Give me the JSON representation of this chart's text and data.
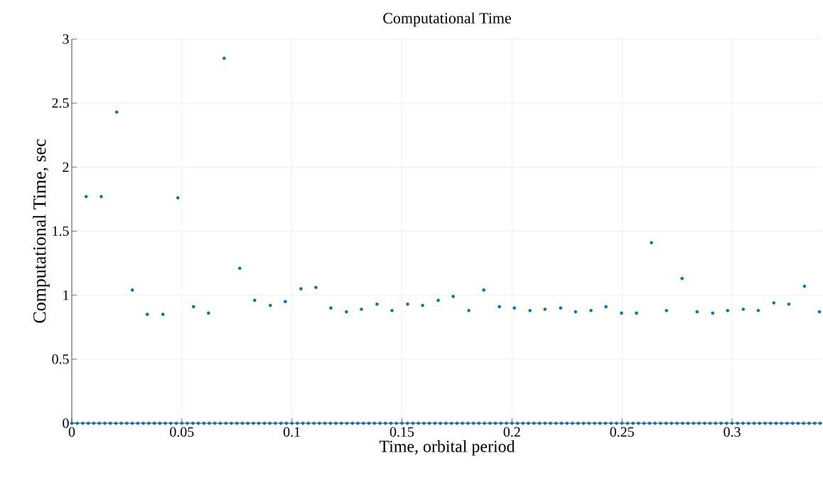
{
  "chart_data": {
    "type": "scatter",
    "title": "Computational Time",
    "xlabel": "Time, orbital period",
    "ylabel": "Computational Time, sec",
    "xlim": [
      0,
      0.341
    ],
    "ylim": [
      0,
      3
    ],
    "xticks": [
      0,
      0.05,
      0.1,
      0.15,
      0.2,
      0.25,
      0.3
    ],
    "yticks": [
      0,
      0.5,
      1,
      1.5,
      2,
      2.5,
      3
    ],
    "grid": true,
    "marker": "circle",
    "series": [
      {
        "color": "#0072bd",
        "x": [
          0.0065,
          0.0134,
          0.0204,
          0.0275,
          0.0343,
          0.0414,
          0.0482,
          0.0553,
          0.0621,
          0.0692,
          0.0763,
          0.0831,
          0.0902,
          0.097,
          0.1041,
          0.1109,
          0.1177,
          0.1248,
          0.1316,
          0.1387,
          0.1455,
          0.1526,
          0.1594,
          0.1665,
          0.1733,
          0.1804,
          0.1872,
          0.1943,
          0.2011,
          0.2082,
          0.215,
          0.2221,
          0.2289,
          0.2359,
          0.2427,
          0.2498,
          0.2566,
          0.2634,
          0.2702,
          0.2773,
          0.2841,
          0.2912,
          0.298,
          0.3051,
          0.3119,
          0.319,
          0.3258,
          0.3329,
          0.3397
        ],
        "values": [
          1.77,
          1.77,
          2.43,
          1.04,
          0.85,
          0.85,
          1.76,
          0.91,
          0.86,
          2.85,
          1.21,
          0.96,
          0.92,
          0.95,
          1.05,
          1.06,
          0.9,
          0.87,
          0.89,
          0.93,
          0.88,
          0.93,
          0.92,
          0.96,
          0.99,
          0.88,
          1.04,
          0.91,
          0.9,
          0.88,
          0.89,
          0.9,
          0.87,
          0.88,
          0.91,
          0.86,
          0.86,
          1.41,
          0.88,
          1.13,
          0.87,
          0.86,
          0.88,
          0.89,
          0.88,
          0.94,
          0.93,
          1.07,
          0.87
        ]
      },
      {
        "color": "#0072bd",
        "x": [
          0,
          0.0025,
          0.005,
          0.0075,
          0.01,
          0.0125,
          0.015,
          0.0175,
          0.02,
          0.0225,
          0.025,
          0.0275,
          0.03,
          0.0325,
          0.035,
          0.0375,
          0.04,
          0.0425,
          0.045,
          0.0475,
          0.05,
          0.0525,
          0.055,
          0.0575,
          0.06,
          0.0625,
          0.065,
          0.0675,
          0.07,
          0.0725,
          0.075,
          0.0775,
          0.08,
          0.0825,
          0.085,
          0.0875,
          0.09,
          0.0925,
          0.095,
          0.0975,
          0.1,
          0.1025,
          0.105,
          0.1075,
          0.11,
          0.1125,
          0.115,
          0.1175,
          0.12,
          0.1225,
          0.125,
          0.1275,
          0.13,
          0.1325,
          0.135,
          0.1375,
          0.14,
          0.1425,
          0.145,
          0.1475,
          0.15,
          0.1525,
          0.155,
          0.1575,
          0.16,
          0.1625,
          0.165,
          0.1675,
          0.17,
          0.1725,
          0.175,
          0.1775,
          0.18,
          0.1825,
          0.185,
          0.1875,
          0.19,
          0.1925,
          0.195,
          0.1975,
          0.2,
          0.2025,
          0.205,
          0.2075,
          0.21,
          0.2125,
          0.215,
          0.2175,
          0.22,
          0.2225,
          0.225,
          0.2275,
          0.23,
          0.2325,
          0.235,
          0.2375,
          0.24,
          0.2425,
          0.245,
          0.2475,
          0.25,
          0.2525,
          0.255,
          0.2575,
          0.26,
          0.2625,
          0.265,
          0.2675,
          0.27,
          0.2725,
          0.275,
          0.2775,
          0.28,
          0.2825,
          0.285,
          0.2875,
          0.29,
          0.2925,
          0.295,
          0.2975,
          0.3,
          0.3025,
          0.305,
          0.3075,
          0.31,
          0.3125,
          0.315,
          0.3175,
          0.32,
          0.3225,
          0.325,
          0.3275,
          0.33,
          0.3325,
          0.335,
          0.3375,
          0.34
        ],
        "values": [
          0,
          0,
          0,
          0,
          0,
          0,
          0,
          0,
          0,
          0,
          0,
          0,
          0,
          0,
          0,
          0,
          0,
          0,
          0,
          0,
          0,
          0,
          0,
          0,
          0,
          0,
          0,
          0,
          0,
          0,
          0,
          0,
          0,
          0,
          0,
          0,
          0,
          0,
          0,
          0,
          0,
          0,
          0,
          0,
          0,
          0,
          0,
          0,
          0,
          0,
          0,
          0,
          0,
          0,
          0,
          0,
          0,
          0,
          0,
          0,
          0,
          0,
          0,
          0,
          0,
          0,
          0,
          0,
          0,
          0,
          0,
          0,
          0,
          0,
          0,
          0,
          0,
          0,
          0,
          0,
          0,
          0,
          0,
          0,
          0,
          0,
          0,
          0,
          0,
          0,
          0,
          0,
          0,
          0,
          0,
          0,
          0,
          0,
          0,
          0,
          0,
          0,
          0,
          0,
          0,
          0,
          0,
          0,
          0,
          0,
          0,
          0,
          0,
          0,
          0,
          0,
          0,
          0,
          0,
          0,
          0,
          0,
          0,
          0,
          0,
          0,
          0,
          0,
          0,
          0,
          0,
          0,
          0,
          0,
          0,
          0,
          0
        ]
      }
    ]
  }
}
